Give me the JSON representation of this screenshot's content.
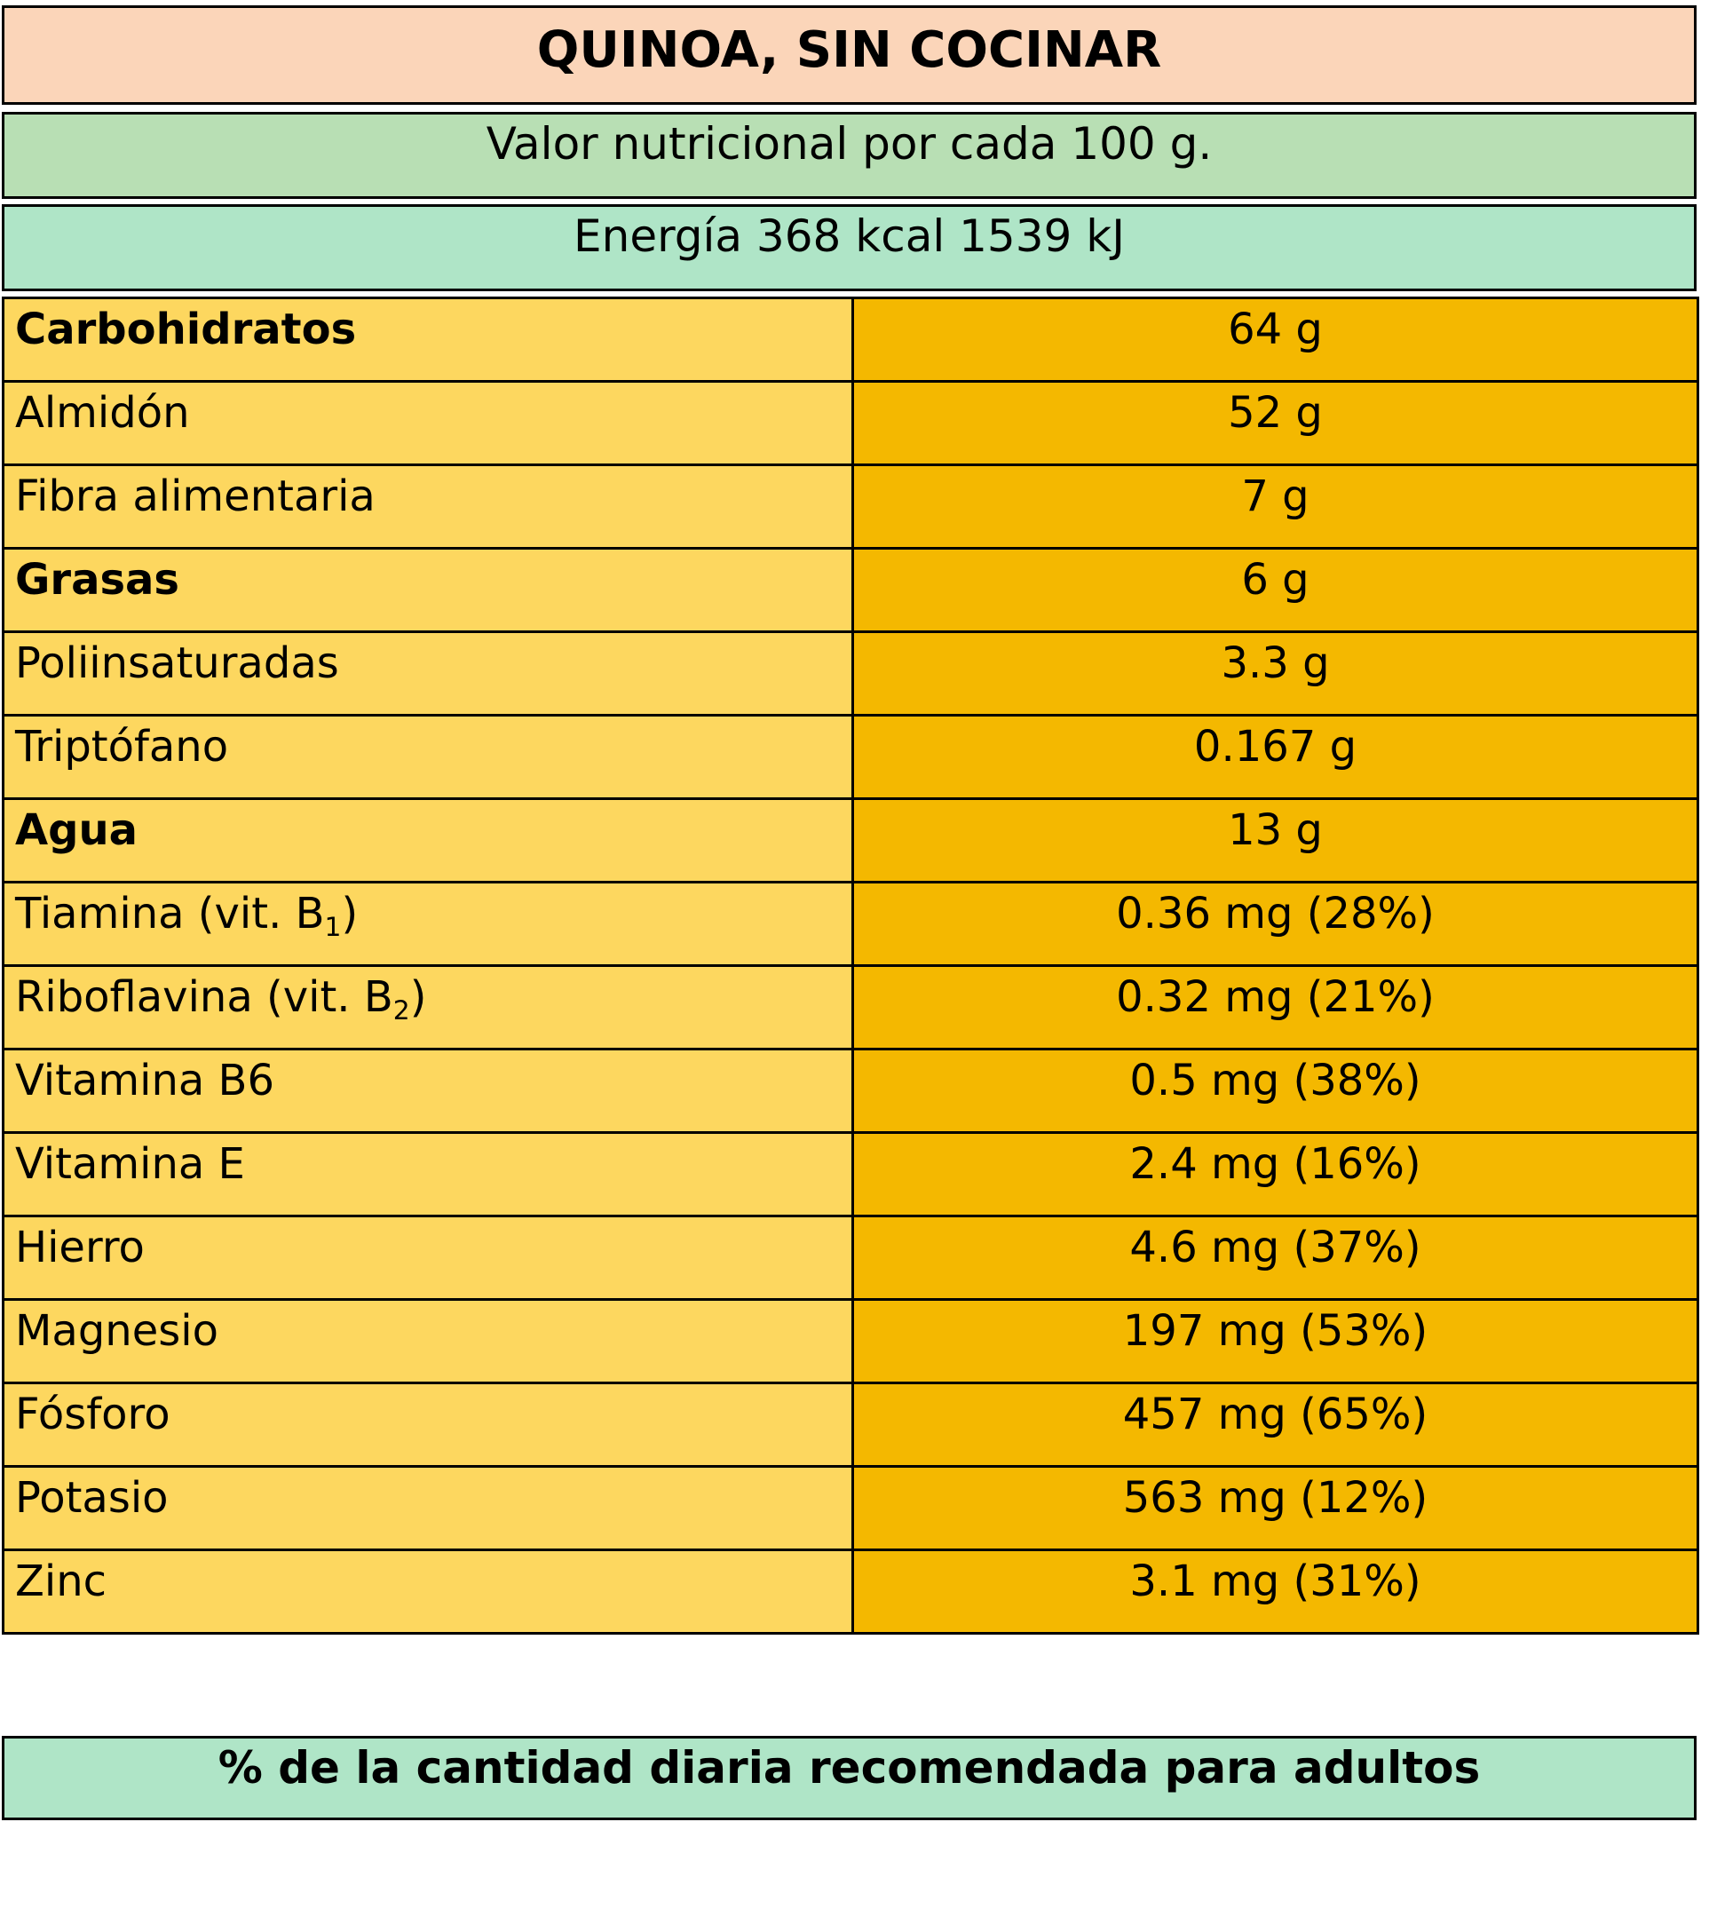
{
  "title": "QUINOA, SIN COCINAR",
  "subtitle": "Valor nutricional por cada 100 g.",
  "energy": "Energía 368 kcal 1539 kJ",
  "rows": [
    {
      "name": "Carbohidratos",
      "value": "64 g"
    },
    {
      "name": "Almidón",
      "value": "52 g"
    },
    {
      "name": "Fibra alimentaria",
      "value": "7 g"
    },
    {
      "name": "Grasas",
      "value": "6 g"
    },
    {
      "name": "Poliinsaturadas",
      "value": "3.3 g"
    },
    {
      "name": "Triptófano",
      "value": "0.167 g"
    },
    {
      "name": "Agua",
      "value": "13 g"
    },
    {
      "name": "Tiamina (vit. B",
      "sub": "1",
      "suffix": ")",
      "value": "0.36 mg (28%)"
    },
    {
      "name": "Riboflavina (vit. B",
      "sub": "2",
      "suffix": ")",
      "value": "0.32 mg (21%)"
    },
    {
      "name": "Vitamina B6",
      "value": "0.5 mg (38%)"
    },
    {
      "name": "Vitamina E",
      "value": "2.4 mg (16%)"
    },
    {
      "name": "Hierro",
      "value": "4.6 mg (37%)"
    },
    {
      "name": "Magnesio",
      "value": "197 mg (53%)"
    },
    {
      "name": "Fósforo",
      "value": "457 mg (65%)"
    },
    {
      "name": "Potasio",
      "value": "563 mg (12%)"
    },
    {
      "name": "Zinc",
      "value": "3.1 mg (31%)"
    }
  ],
  "footer": "% de la cantidad diaria recomendada para adultos",
  "colors": {
    "title_bg": "#fbd5b9",
    "subtitle_bg": "#b8dfb4",
    "energy_bg": "#afe5c7",
    "name_col_bg": "#fdd75f",
    "value_col_bg": "#f4b800"
  }
}
